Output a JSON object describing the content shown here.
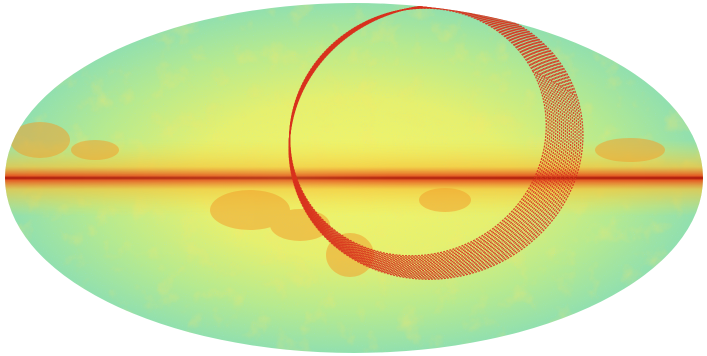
{
  "figure": {
    "projection": "mollweide",
    "coordinate_system": "galactic",
    "colormap": [
      "#4fc8d8",
      "#9ee3a8",
      "#eef26a",
      "#f5c13a",
      "#e5652a",
      "#b01a10"
    ],
    "background_color": "#ffffff",
    "scan_path_color": "#d8321e",
    "scan_loop_count": 20
  }
}
